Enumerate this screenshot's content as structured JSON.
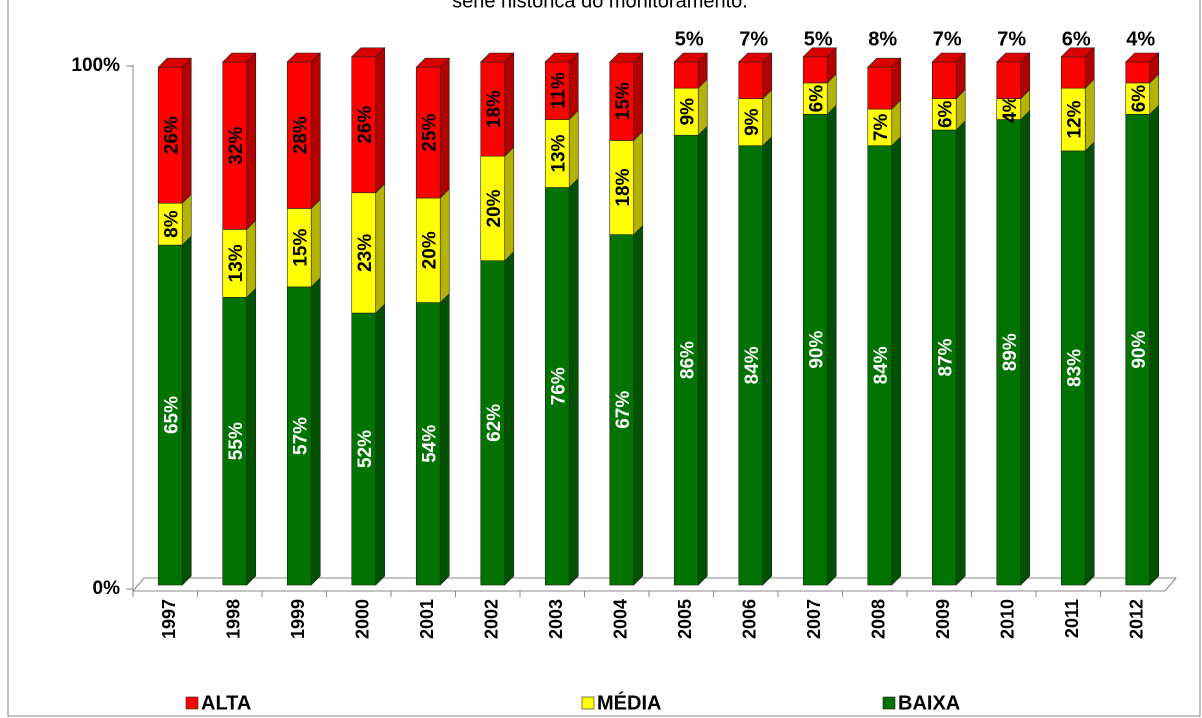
{
  "chart_data": {
    "type": "bar",
    "stacked": true,
    "title": "série histórica do monitoramento.",
    "categories": [
      "1997",
      "1998",
      "1999",
      "2000",
      "2001",
      "2002",
      "2003",
      "2004",
      "2005",
      "2006",
      "2007",
      "2008",
      "2009",
      "2010",
      "2011",
      "2012"
    ],
    "series": [
      {
        "name": "BAIXA",
        "color": "#007300",
        "values": [
          65,
          55,
          57,
          52,
          54,
          62,
          76,
          67,
          86,
          84,
          90,
          84,
          87,
          89,
          83,
          90
        ],
        "value_labels": [
          "65%",
          "55%",
          "57%",
          "52%",
          "54%",
          "62%",
          "76%",
          "67%",
          "86%",
          "84%",
          "90%",
          "84%",
          "87%",
          "89%",
          "83%",
          "90%"
        ]
      },
      {
        "name": "MÉDIA",
        "color": "#ffff00",
        "values": [
          8,
          13,
          15,
          23,
          20,
          20,
          13,
          18,
          9,
          9,
          6,
          7,
          6,
          4,
          12,
          6
        ],
        "value_labels": [
          "8%",
          "13%",
          "15%",
          "23%",
          "20%",
          "20%",
          "13%",
          "18%",
          "9%",
          "9%",
          "6%",
          "7%",
          "6%",
          "4%",
          "12%",
          "6%"
        ]
      },
      {
        "name": "ALTA",
        "color": "#ff0000",
        "values": [
          26,
          32,
          28,
          26,
          25,
          18,
          11,
          15,
          5,
          7,
          5,
          8,
          7,
          7,
          6,
          4
        ],
        "value_labels": [
          "26%",
          "32%",
          "28%",
          "26%",
          "25%",
          "18%",
          "11%",
          "15%",
          "5%",
          "7%",
          "5%",
          "8%",
          "7%",
          "7%",
          "6%",
          "4%"
        ]
      }
    ],
    "legend_order": [
      "ALTA",
      "MÉDIA",
      "BAIXA"
    ],
    "legend": "bottom",
    "ylim": [
      0,
      100
    ],
    "yticks": [
      {
        "value": 0,
        "label": "0%"
      },
      {
        "value": 100,
        "label": "100%"
      }
    ]
  }
}
